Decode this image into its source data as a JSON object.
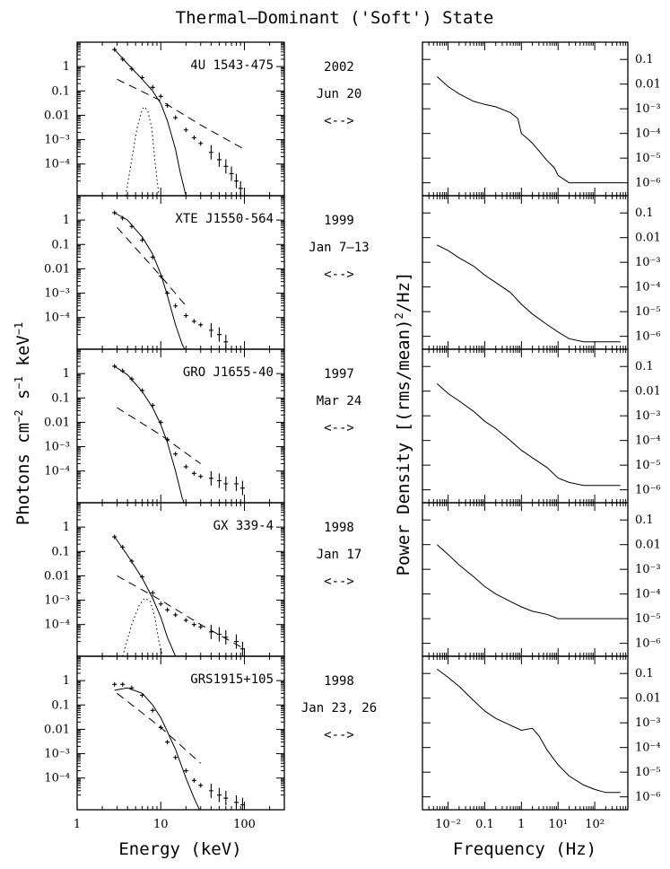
{
  "figure": {
    "title": "Thermal–Dominant ('Soft') State",
    "energy_xlabel": "Energy (keV)",
    "energy_ylabel_main": "Photons cm",
    "energy_ylabel_sup1": "−2",
    "energy_ylabel_mid": " s",
    "energy_ylabel_sup2": "−1",
    "energy_ylabel_end": " keV",
    "energy_ylabel_sup3": "−1",
    "power_xlabel": "Frequency (Hz)",
    "power_ylabel_main": "Power Density [(rms/mean)",
    "power_ylabel_sup": "2",
    "power_ylabel_end": "/Hz]",
    "arrow_symbol": "<-->"
  },
  "chart_data": [
    {
      "type": "line",
      "panel": "energy-spectra",
      "x_scale": "log",
      "y_scale": "log",
      "xlim": [
        1,
        300
      ],
      "ylim": [
        5e-06,
        10
      ],
      "x_ticks": [
        "1",
        "10",
        "100"
      ],
      "y_ticks": [
        "1",
        "0.1",
        "0.01",
        "10⁻³",
        "10⁻⁴"
      ],
      "xlabel": "Energy (keV)",
      "sources": [
        {
          "name": "4U 1543-475",
          "year": "2002",
          "date": "Jun 20",
          "data": {
            "x": [
              2.8,
              3.5,
              4.5,
              6,
              8,
              10,
              12,
              15,
              20,
              25,
              30,
              40,
              50,
              60,
              70,
              80,
              90
            ],
            "y": [
              5,
              2,
              0.8,
              0.35,
              0.14,
              0.06,
              0.025,
              0.008,
              0.0025,
              0.0012,
              0.0007,
              0.0003,
              0.00015,
              8e-05,
              4e-05,
              2e-05,
              1e-05
            ]
          },
          "disk": {
            "x": [
              2.8,
              4,
              6,
              8,
              10,
              12,
              15,
              17,
              20
            ],
            "y": [
              5,
              1.3,
              0.3,
              0.1,
              0.03,
              0.006,
              0.0004,
              5e-05,
              5e-06
            ]
          },
          "powerlaw": {
            "x": [
              3,
              10,
              30,
              100
            ],
            "y": [
              0.3,
              0.04,
              0.004,
              0.0004
            ]
          },
          "line": {
            "x": [
              3.8,
              4.5,
              5.2,
              6,
              6.4,
              7,
              7.8,
              8.6,
              9.5
            ],
            "y": [
              5e-06,
              0.00015,
              0.003,
              0.018,
              0.022,
              0.015,
              0.003,
              0.0001,
              5e-06
            ]
          }
        },
        {
          "name": "XTE J1550-564",
          "year": "1999",
          "date": "Jan 7–13",
          "data": {
            "x": [
              2.8,
              3.5,
              4.5,
              6,
              8,
              10,
              12,
              15,
              20,
              25,
              30,
              40,
              50,
              60
            ],
            "y": [
              2,
              1.2,
              0.55,
              0.15,
              0.03,
              0.005,
              0.001,
              0.0003,
              0.00012,
              7e-05,
              5e-05,
              3e-05,
              2e-05,
              1e-05
            ]
          },
          "disk": {
            "x": [
              2.8,
              4,
              6,
              8,
              10,
              12,
              15,
              18,
              20
            ],
            "y": [
              2,
              1,
              0.2,
              0.04,
              0.006,
              0.0008,
              5e-05,
              8e-06,
              4e-06
            ]
          },
          "powerlaw": {
            "x": [
              3,
              10,
              20
            ],
            "y": [
              0.5,
              0.005,
              0.0003
            ]
          }
        },
        {
          "name": "GRO J1655-40",
          "year": "1997",
          "date": "Mar 24",
          "data": {
            "x": [
              2.8,
              3.5,
              4.5,
              6,
              8,
              10,
              12,
              15,
              20,
              25,
              30,
              40,
              50,
              60,
              80,
              95
            ],
            "y": [
              2,
              1.3,
              0.6,
              0.2,
              0.05,
              0.01,
              0.002,
              0.0005,
              0.00015,
              8e-05,
              6e-05,
              5e-05,
              4e-05,
              3e-05,
              3e-05,
              2e-05
            ]
          },
          "disk": {
            "x": [
              2.8,
              4,
              6,
              8,
              10,
              12,
              15,
              18,
              20
            ],
            "y": [
              2,
              0.9,
              0.18,
              0.04,
              0.008,
              0.0015,
              0.0001,
              8e-06,
              3e-06
            ]
          },
          "powerlaw": {
            "x": [
              3,
              10,
              30
            ],
            "y": [
              0.04,
              0.003,
              0.0002
            ]
          }
        },
        {
          "name": "GX 339-4",
          "year": "1998",
          "date": "Jan 17",
          "data": {
            "x": [
              2.8,
              3.5,
              4.5,
              6,
              8,
              10,
              12,
              15,
              20,
              25,
              30,
              40,
              50,
              60,
              80,
              95
            ],
            "y": [
              0.4,
              0.15,
              0.04,
              0.009,
              0.002,
              0.0007,
              0.0004,
              0.00025,
              0.00015,
              0.0001,
              8e-05,
              5e-05,
              4e-05,
              3e-05,
              2e-05,
              1e-05
            ]
          },
          "disk": {
            "x": [
              2.8,
              4,
              6,
              8,
              10,
              12,
              15,
              17
            ],
            "y": [
              0.4,
              0.07,
              0.008,
              0.0012,
              0.0002,
              3e-05,
              5e-06,
              3e-06
            ]
          },
          "powerlaw": {
            "x": [
              3,
              10,
              30,
              100
            ],
            "y": [
              0.01,
              0.001,
              0.0001,
              1e-05
            ]
          },
          "line": {
            "x": [
              3.5,
              4.5,
              5.5,
              6.4,
              7.5,
              8.5,
              9.5,
              10.5
            ],
            "y": [
              5e-06,
              0.0001,
              0.0006,
              0.0012,
              0.0009,
              0.0002,
              2e-05,
              5e-06
            ]
          }
        },
        {
          "name": "GRS1915+105",
          "year": "1998",
          "date": "Jan 23, 26",
          "data": {
            "x": [
              2.8,
              3.5,
              4.5,
              6,
              8,
              10,
              12,
              15,
              20,
              25,
              30,
              40,
              50,
              60,
              80,
              95
            ],
            "y": [
              0.7,
              0.7,
              0.5,
              0.25,
              0.06,
              0.012,
              0.003,
              0.0007,
              0.0002,
              8e-05,
              5e-05,
              3e-05,
              2e-05,
              1.5e-05,
              1e-05,
              8e-06
            ]
          },
          "disk": {
            "x": [
              2.8,
              4,
              6,
              8,
              10,
              12,
              15,
              20,
              25,
              30
            ],
            "y": [
              0.4,
              0.5,
              0.3,
              0.1,
              0.03,
              0.008,
              0.0015,
              0.0001,
              1.5e-05,
              4e-06
            ]
          },
          "powerlaw": {
            "x": [
              3,
              10,
              30
            ],
            "y": [
              0.3,
              0.012,
              0.0004
            ]
          }
        }
      ]
    },
    {
      "type": "line",
      "panel": "power-density-spectra",
      "x_scale": "log",
      "y_scale": "log",
      "xlim": [
        0.002,
        800
      ],
      "ylim": [
        3e-07,
        0.5
      ],
      "x_ticks": [
        "10⁻²",
        "0.1",
        "1",
        "10¹",
        "10²"
      ],
      "y_ticks": [
        "0.1",
        "0.01",
        "10⁻³",
        "10⁻⁴",
        "10⁻⁵",
        "10⁻⁶"
      ],
      "xlabel": "Frequency (Hz)",
      "series": [
        {
          "x": [
            0.005,
            0.01,
            0.02,
            0.05,
            0.1,
            0.2,
            0.5,
            0.8,
            1,
            1.5,
            2,
            3,
            5,
            8,
            10,
            20,
            50,
            100,
            200,
            500
          ],
          "y": [
            0.02,
            0.008,
            0.004,
            0.002,
            0.0015,
            0.0012,
            0.0007,
            0.0004,
            0.0001,
            6e-05,
            4e-05,
            2e-05,
            8e-06,
            4e-06,
            2e-06,
            1e-06,
            1e-06,
            1e-06,
            1e-06,
            1e-06
          ]
        },
        {
          "x": [
            0.005,
            0.01,
            0.02,
            0.05,
            0.1,
            0.2,
            0.5,
            1,
            2,
            5,
            10,
            20,
            50,
            100,
            200,
            500
          ],
          "y": [
            0.005,
            0.003,
            0.0015,
            0.0007,
            0.0003,
            0.00015,
            6e-05,
            2e-05,
            8e-06,
            3e-06,
            1.5e-06,
            8e-07,
            6e-07,
            6e-07,
            6e-07,
            6e-07
          ]
        },
        {
          "x": [
            0.005,
            0.01,
            0.02,
            0.05,
            0.1,
            0.2,
            0.5,
            1,
            2,
            5,
            10,
            20,
            50,
            100,
            200,
            500
          ],
          "y": [
            0.02,
            0.008,
            0.004,
            0.0015,
            0.0006,
            0.0003,
            0.0001,
            4e-05,
            2e-05,
            8e-06,
            3e-06,
            2e-06,
            1.5e-06,
            1.5e-06,
            1.5e-06,
            1.5e-06
          ]
        },
        {
          "x": [
            0.005,
            0.01,
            0.02,
            0.05,
            0.1,
            0.2,
            0.5,
            1,
            2,
            5,
            10,
            20,
            50,
            100,
            200,
            500
          ],
          "y": [
            0.01,
            0.004,
            0.0015,
            0.0005,
            0.0002,
            0.0001,
            5e-05,
            3e-05,
            2e-05,
            1.5e-05,
            1e-05,
            1e-05,
            1e-05,
            1e-05,
            1e-05,
            1e-05
          ]
        },
        {
          "x": [
            0.005,
            0.01,
            0.02,
            0.05,
            0.1,
            0.2,
            0.5,
            1,
            2,
            3,
            5,
            10,
            20,
            50,
            100,
            200,
            500
          ],
          "y": [
            0.15,
            0.07,
            0.03,
            0.008,
            0.003,
            0.0015,
            0.0008,
            0.0005,
            0.0006,
            0.0003,
            8e-05,
            2e-05,
            7e-06,
            3e-06,
            2e-06,
            1.5e-06,
            1.5e-06
          ]
        }
      ]
    }
  ]
}
